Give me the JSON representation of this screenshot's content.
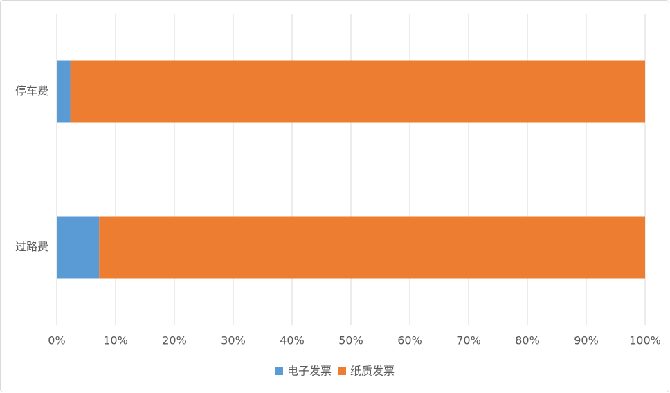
{
  "chart_data": {
    "type": "stacked-barh",
    "categories": [
      "停车费",
      "过路费"
    ],
    "series": [
      {
        "name": "电子发票",
        "color": "#5b9bd5",
        "values": [
          2.3,
          7.2
        ]
      },
      {
        "name": "纸质发票",
        "color": "#ed7d31",
        "values": [
          97.7,
          92.8
        ]
      }
    ],
    "xlim": [
      0,
      100
    ],
    "xticks": [
      {
        "value": 0,
        "label": "0%"
      },
      {
        "value": 10,
        "label": "10%"
      },
      {
        "value": 20,
        "label": "20%"
      },
      {
        "value": 30,
        "label": "30%"
      },
      {
        "value": 40,
        "label": "40%"
      },
      {
        "value": 50,
        "label": "50%"
      },
      {
        "value": 60,
        "label": "60%"
      },
      {
        "value": 70,
        "label": "70%"
      },
      {
        "value": 80,
        "label": "80%"
      },
      {
        "value": 90,
        "label": "90%"
      },
      {
        "value": 100,
        "label": "100%"
      }
    ],
    "grid": true,
    "legend": "bottom"
  }
}
